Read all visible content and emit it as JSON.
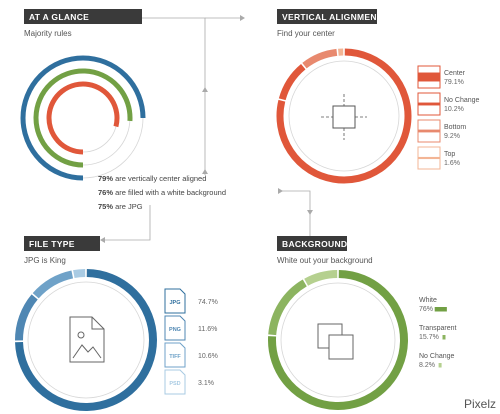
{
  "colors": {
    "header_bg": "#3a3a3a",
    "blue": "#2f6f9e",
    "light_blue": "#8fb9d8",
    "green": "#72a044",
    "orange": "#e0573a",
    "light_orange": "#f3b595",
    "connector": "#aaaaaa",
    "track": "#d6d6d6"
  },
  "watermark": "Pixelz",
  "chart_data": [
    {
      "type": "ring",
      "title": "AT A GLANCE",
      "subtitle": "Majority rules",
      "arcs": [
        {
          "label": "are JPG",
          "value": 75,
          "color": "#2f6f9e"
        },
        {
          "label": "are filled with a white background",
          "value": 76,
          "color": "#72a044"
        },
        {
          "label": "are vertically center aligned",
          "value": 79,
          "color": "#e0573a"
        }
      ],
      "statements": [
        {
          "value": "79%",
          "text": " are vertically center aligned"
        },
        {
          "value": "76%",
          "text": " are filled with a white background"
        },
        {
          "value": "75%",
          "text": " are JPG"
        }
      ]
    },
    {
      "type": "donut",
      "title": "VERTICAL ALIGNMENT",
      "subtitle": "Find your center",
      "icon": "crosshair-square-icon",
      "slices": [
        {
          "name": "Center",
          "value": 79.1,
          "label": "79.1%",
          "color": "#e0573a"
        },
        {
          "name": "No Change",
          "value": 10.2,
          "label": "10.2%",
          "color": "#e0573a"
        },
        {
          "name": "Bottom",
          "value": 9.2,
          "label": "9.2%",
          "color": "#e8896e"
        },
        {
          "name": "Top",
          "value": 1.6,
          "label": "1.6%",
          "color": "#f3b595"
        }
      ]
    },
    {
      "type": "donut",
      "title": "FILE TYPE",
      "subtitle": "JPG is King",
      "icon": "image-file-icon",
      "slices": [
        {
          "name": "JPG",
          "value": 74.7,
          "label": "74.7%",
          "color": "#2f6f9e"
        },
        {
          "name": "PNG",
          "value": 11.6,
          "label": "11.6%",
          "color": "#4f87b3"
        },
        {
          "name": "TIFF",
          "value": 10.6,
          "label": "10.6%",
          "color": "#6fa2c8"
        },
        {
          "name": "PSD",
          "value": 3.1,
          "label": "3.1%",
          "color": "#a9cbe3"
        }
      ]
    },
    {
      "type": "donut",
      "title": "BACKGROUND",
      "subtitle": "White out your background",
      "icon": "layered-squares-icon",
      "slices": [
        {
          "name": "White",
          "value": 76,
          "label": "76%",
          "color": "#72a044"
        },
        {
          "name": "Transparent",
          "value": 15.7,
          "label": "15.7%",
          "color": "#8cb460"
        },
        {
          "name": "No Change",
          "value": 8.2,
          "label": "8.2%",
          "color": "#b5d08f"
        }
      ]
    }
  ]
}
